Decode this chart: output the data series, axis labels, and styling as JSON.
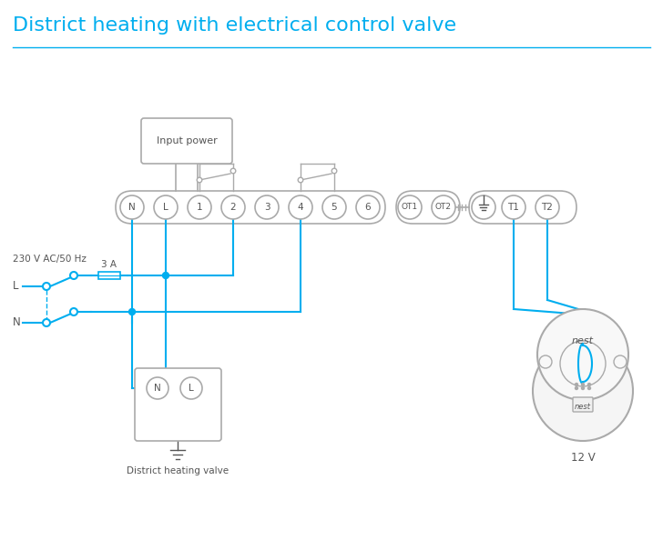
{
  "title": "District heating with electrical control valve",
  "title_color": "#00AEEF",
  "title_fontsize": 16,
  "bg_color": "#FFFFFF",
  "line_color": "#00AEEF",
  "border_color": "#AAAAAA",
  "text_color": "#777777",
  "dark_text": "#555555",
  "label_230v": "230 V AC/50 Hz",
  "label_L": "L",
  "label_N": "N",
  "label_3A": "3 A",
  "label_valve": "District heating valve",
  "label_12v": "12 V",
  "label_input": "Input power",
  "label_nest": "nest",
  "figsize": [
    7.28,
    5.94
  ],
  "dpi": 100
}
